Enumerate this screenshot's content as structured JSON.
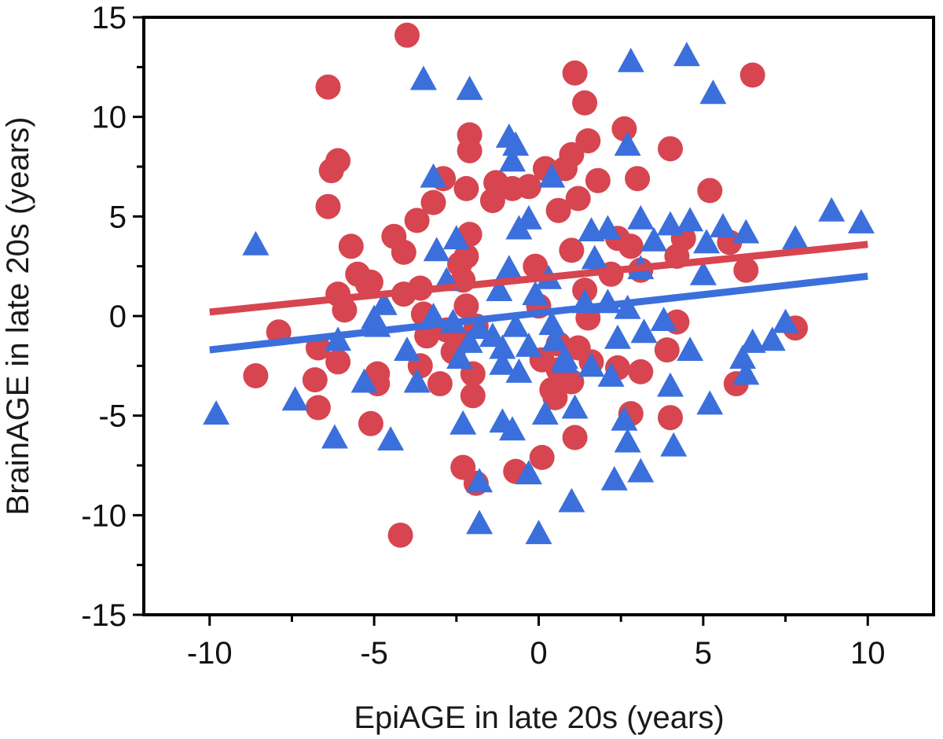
{
  "chart_data": {
    "type": "scatter",
    "title": "",
    "xlabel": "EpiAGE in late 20s (years)",
    "ylabel": "BrainAGE in late 20s (years)",
    "xlim": [
      -12,
      12
    ],
    "ylim": [
      -15,
      15
    ],
    "xticks": [
      -10,
      -5,
      0,
      5,
      10
    ],
    "xtick_labels": [
      "-10",
      "-5",
      "0",
      "5",
      "10"
    ],
    "yticks": [
      -15,
      -10,
      -5,
      0,
      5,
      10,
      15
    ],
    "ytick_labels": [
      "-15",
      "-10",
      "-5",
      "0",
      "5",
      "10",
      "15"
    ],
    "grid": false,
    "legend": "none",
    "series": [
      {
        "name": "circles",
        "marker": "circle",
        "color": "#d64550",
        "trend": {
          "x": [
            -10,
            10
          ],
          "y": [
            0.2,
            3.6
          ]
        },
        "points": [
          [
            -4,
            14.1
          ],
          [
            -6.4,
            11.5
          ],
          [
            6.5,
            12.1
          ],
          [
            1.1,
            12.2
          ],
          [
            1.4,
            10.7
          ],
          [
            -2.1,
            9.1
          ],
          [
            -2.1,
            8.3
          ],
          [
            2.6,
            9.4
          ],
          [
            4,
            8.4
          ],
          [
            1.5,
            8.8
          ],
          [
            1,
            8.1
          ],
          [
            -6.1,
            7.8
          ],
          [
            -6.3,
            7.3
          ],
          [
            -2.9,
            6.9
          ],
          [
            -2.2,
            6.4
          ],
          [
            -1.3,
            6.7
          ],
          [
            -0.8,
            6.4
          ],
          [
            -1.4,
            5.8
          ],
          [
            0.2,
            7.4
          ],
          [
            0.8,
            7.4
          ],
          [
            3,
            6.9
          ],
          [
            1.8,
            6.8
          ],
          [
            -0.3,
            6.5
          ],
          [
            -6.4,
            5.5
          ],
          [
            -3.2,
            5.7
          ],
          [
            0.6,
            5.3
          ],
          [
            1.2,
            5.9
          ],
          [
            5.2,
            6.3
          ],
          [
            -3.7,
            4.8
          ],
          [
            -2.1,
            4.1
          ],
          [
            -4.4,
            4
          ],
          [
            -5.7,
            3.5
          ],
          [
            -4.1,
            3.2
          ],
          [
            -2.2,
            3
          ],
          [
            -2.4,
            2.6
          ],
          [
            -5.5,
            2.1
          ],
          [
            -5.2,
            1.6
          ],
          [
            -3.6,
            1.4
          ],
          [
            -2.3,
            1.8
          ],
          [
            -0.1,
            2.5
          ],
          [
            1,
            3.3
          ],
          [
            2.4,
            3.9
          ],
          [
            2.8,
            3.5
          ],
          [
            4.4,
            3.9
          ],
          [
            5.8,
            3.7
          ],
          [
            6.3,
            2.3
          ],
          [
            -6.1,
            1.1
          ],
          [
            -5.1,
            1.7
          ],
          [
            -4.1,
            1.1
          ],
          [
            -2.2,
            0.5
          ],
          [
            1.4,
            1.3
          ],
          [
            2.2,
            2.1
          ],
          [
            3.1,
            2.3
          ],
          [
            4.2,
            3
          ],
          [
            -5.9,
            0.3
          ],
          [
            -3.5,
            0.1
          ],
          [
            -2.8,
            -0.7
          ],
          [
            -1.9,
            -0.5
          ],
          [
            0,
            0.5
          ],
          [
            1.5,
            -0.1
          ],
          [
            4.2,
            -0.3
          ],
          [
            7.8,
            -0.6
          ],
          [
            -7.9,
            -0.8
          ],
          [
            -3.4,
            -1
          ],
          [
            -2.3,
            -1.2
          ],
          [
            0.6,
            -1.4
          ],
          [
            1.2,
            -1.6
          ],
          [
            -6.7,
            -1.6
          ],
          [
            -6.1,
            -2.3
          ],
          [
            -3.6,
            -2.5
          ],
          [
            -2.6,
            -1.8
          ],
          [
            -2,
            -2.9
          ],
          [
            0.1,
            -2.2
          ],
          [
            0.6,
            -2.7
          ],
          [
            1.6,
            -2.3
          ],
          [
            2.4,
            -2.6
          ],
          [
            3.1,
            -2.8
          ],
          [
            3.9,
            -1.7
          ],
          [
            -8.6,
            -3
          ],
          [
            -6.8,
            -3.2
          ],
          [
            -4.9,
            -2.9
          ],
          [
            -4.9,
            -3.4
          ],
          [
            -3,
            -3.4
          ],
          [
            -2,
            -4
          ],
          [
            0.5,
            -4.1
          ],
          [
            0.4,
            -3.7
          ],
          [
            1,
            -3.3
          ],
          [
            6,
            -3.4
          ],
          [
            -6.7,
            -4.6
          ],
          [
            -5.1,
            -5.4
          ],
          [
            2.8,
            -4.9
          ],
          [
            4,
            -5.1
          ],
          [
            1.1,
            -6.1
          ],
          [
            -2.3,
            -7.6
          ],
          [
            -1.9,
            -8.4
          ],
          [
            -0.7,
            -7.8
          ],
          [
            0.1,
            -7.1
          ],
          [
            -4.2,
            -11
          ]
        ]
      },
      {
        "name": "triangles",
        "marker": "triangle",
        "color": "#3b6fdc",
        "trend": {
          "x": [
            -10,
            10
          ],
          "y": [
            -1.7,
            2
          ]
        },
        "points": [
          [
            2.8,
            12.8
          ],
          [
            4.5,
            13.1
          ],
          [
            -3.5,
            11.9
          ],
          [
            -2.1,
            11.4
          ],
          [
            5.3,
            11.2
          ],
          [
            -0.9,
            9
          ],
          [
            -0.7,
            8.6
          ],
          [
            2.7,
            8.6
          ],
          [
            -0.8,
            7.8
          ],
          [
            -3.2,
            7
          ],
          [
            0.4,
            7
          ],
          [
            -8.6,
            3.6
          ],
          [
            -3.1,
            3.3
          ],
          [
            -2.5,
            3.9
          ],
          [
            -0.3,
            4.9
          ],
          [
            -0.6,
            4.4
          ],
          [
            2.1,
            4.4
          ],
          [
            3.1,
            4.9
          ],
          [
            4,
            4.6
          ],
          [
            4.6,
            4.8
          ],
          [
            5.6,
            4.5
          ],
          [
            6.3,
            4.2
          ],
          [
            7.8,
            3.9
          ],
          [
            8.9,
            5.3
          ],
          [
            9.8,
            4.7
          ],
          [
            1.6,
            4.3
          ],
          [
            3.5,
            3.8
          ],
          [
            5.1,
            3.7
          ],
          [
            1.7,
            2.9
          ],
          [
            3.1,
            2.4
          ],
          [
            5,
            2.1
          ],
          [
            -0.9,
            2.4
          ],
          [
            -2.8,
            1.8
          ],
          [
            -1.2,
            1.3
          ],
          [
            -0.1,
            1.1
          ],
          [
            0.3,
            1.9
          ],
          [
            -4.7,
            0.6
          ],
          [
            -5,
            -0.1
          ],
          [
            -4.9,
            -0.5
          ],
          [
            -3.2,
            0
          ],
          [
            -2.6,
            -0.3
          ],
          [
            -1.8,
            -0.6
          ],
          [
            -1.4,
            -1
          ],
          [
            -0.7,
            -0.5
          ],
          [
            0.4,
            -0.4
          ],
          [
            1.4,
            0.7
          ],
          [
            2.1,
            0.7
          ],
          [
            2.7,
            0.4
          ],
          [
            3.8,
            -0.2
          ],
          [
            -6.1,
            -1.2
          ],
          [
            -4,
            -1.7
          ],
          [
            -2.1,
            -1.3
          ],
          [
            -1.1,
            -1.6
          ],
          [
            -0.3,
            -1.5
          ],
          [
            0.5,
            -1.2
          ],
          [
            0.8,
            -2.1
          ],
          [
            2.4,
            -1.1
          ],
          [
            3.2,
            -0.8
          ],
          [
            4.6,
            -1.7
          ],
          [
            6.5,
            -1.3
          ],
          [
            7.1,
            -1.2
          ],
          [
            7.5,
            -0.3
          ],
          [
            -2.4,
            -2.1
          ],
          [
            -1.1,
            -2.4
          ],
          [
            -0.6,
            -2.8
          ],
          [
            0.8,
            -2.3
          ],
          [
            1.6,
            -2.5
          ],
          [
            2.2,
            -3
          ],
          [
            4,
            -3.5
          ],
          [
            6.2,
            -2.1
          ],
          [
            6.3,
            -2.9
          ],
          [
            -9.8,
            -4.9
          ],
          [
            -7.4,
            -4.2
          ],
          [
            -6.2,
            -6.1
          ],
          [
            -5.3,
            -3.3
          ],
          [
            -4.5,
            -6.2
          ],
          [
            -3.7,
            -3.3
          ],
          [
            -2.3,
            -5.4
          ],
          [
            -1.1,
            -5.3
          ],
          [
            -0.8,
            -5.7
          ],
          [
            0.2,
            -4.9
          ],
          [
            1.1,
            -4.6
          ],
          [
            2.6,
            -5.2
          ],
          [
            2.7,
            -6.3
          ],
          [
            4.1,
            -6.5
          ],
          [
            5.2,
            -4.4
          ],
          [
            -1.8,
            -8.3
          ],
          [
            -0.3,
            -7.9
          ],
          [
            2.3,
            -8.2
          ],
          [
            3.1,
            -7.8
          ],
          [
            -1.8,
            -10.4
          ],
          [
            1,
            -9.3
          ],
          [
            0,
            -10.9
          ]
        ]
      }
    ]
  }
}
